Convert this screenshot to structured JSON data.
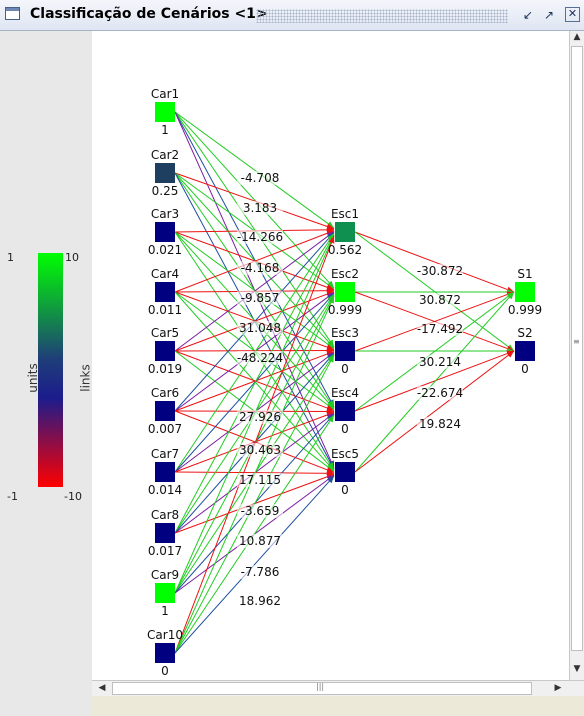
{
  "window": {
    "title": "Classificação de Cenários <1>",
    "min_icon": "minimize-icon",
    "max_icon": "maximize-icon",
    "close_icon": "close-icon"
  },
  "legend": {
    "units_label": "units",
    "links_label": "links",
    "units_max": "1",
    "units_min": "-1",
    "links_max": "10",
    "links_min": "-10",
    "colors": {
      "high": "#00ff00",
      "mid": "#1c1c8c",
      "low": "#ff0000"
    }
  },
  "network": {
    "inputs": [
      {
        "label": "Car1",
        "value": "1",
        "color": "#00ff00"
      },
      {
        "label": "Car2",
        "value": "0.25",
        "color": "#1f3f60"
      },
      {
        "label": "Car3",
        "value": "0.021",
        "color": "#000080"
      },
      {
        "label": "Car4",
        "value": "0.011",
        "color": "#000080"
      },
      {
        "label": "Car5",
        "value": "0.019",
        "color": "#000080"
      },
      {
        "label": "Car6",
        "value": "0.007",
        "color": "#000080"
      },
      {
        "label": "Car7",
        "value": "0.014",
        "color": "#000080"
      },
      {
        "label": "Car8",
        "value": "0.017",
        "color": "#000080"
      },
      {
        "label": "Car9",
        "value": "1",
        "color": "#00ff00"
      },
      {
        "label": "Car10",
        "value": "0",
        "color": "#000080"
      }
    ],
    "hidden": [
      {
        "label": "Esc1",
        "value": "0.562",
        "color": "#109050"
      },
      {
        "label": "Esc2",
        "value": "0.999",
        "color": "#00ff00"
      },
      {
        "label": "Esc3",
        "value": "0",
        "color": "#000080"
      },
      {
        "label": "Esc4",
        "value": "0",
        "color": "#000080"
      },
      {
        "label": "Esc5",
        "value": "0",
        "color": "#000080"
      }
    ],
    "outputs": [
      {
        "label": "S1",
        "value": "0.999",
        "color": "#00ff00"
      },
      {
        "label": "S2",
        "value": "0",
        "color": "#000080"
      }
    ],
    "input_weight_labels": [
      "-4.708",
      "3.183",
      "-14.266",
      "-4.168",
      "-9.857",
      "31.048",
      "-48.224",
      "27.926",
      "30.463",
      "17.115",
      "-3.659",
      "10.877",
      "-7.786",
      "18.962"
    ],
    "hidden_weight_labels": [
      "-30.872",
      "30.872",
      "-17.492",
      "30.214",
      "-22.674",
      "19.824"
    ],
    "link_colors": {
      "positive": "#22cc22",
      "negative": "#ee1111",
      "mixed_a": "#7a1fa0",
      "mixed_b": "#1e4fa0"
    }
  }
}
